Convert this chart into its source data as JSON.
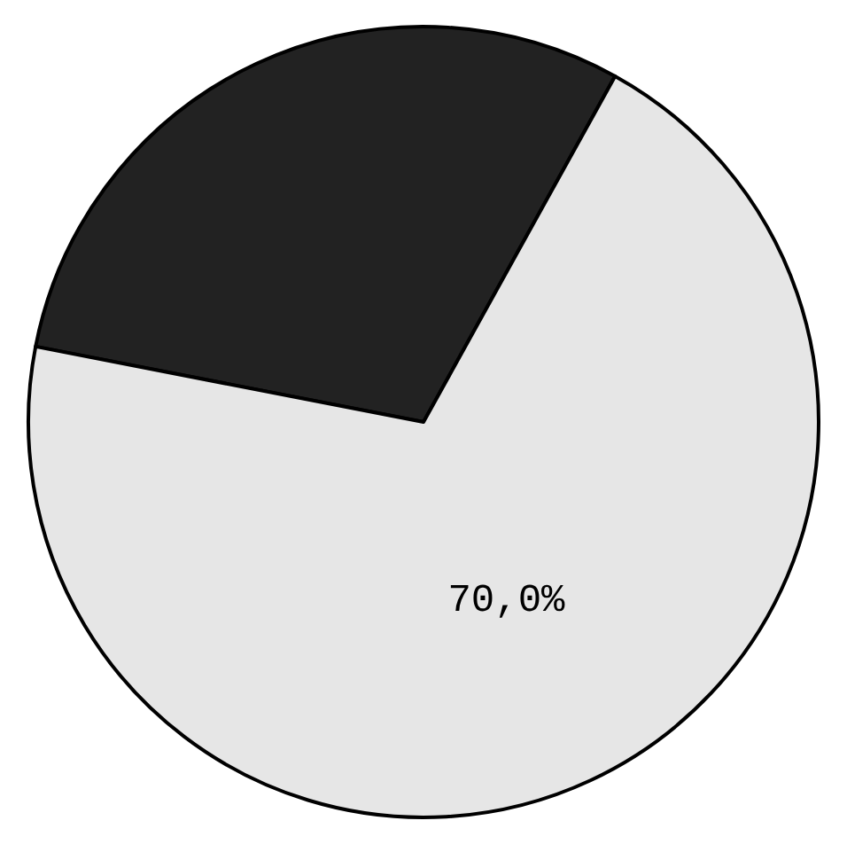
{
  "chart_data": {
    "type": "pie",
    "categories": [
      null,
      null
    ],
    "values": [
      30,
      70
    ],
    "colors": [
      "#222222",
      "#e6e6e6"
    ],
    "value_labels": [
      null,
      "70,0%"
    ]
  }
}
